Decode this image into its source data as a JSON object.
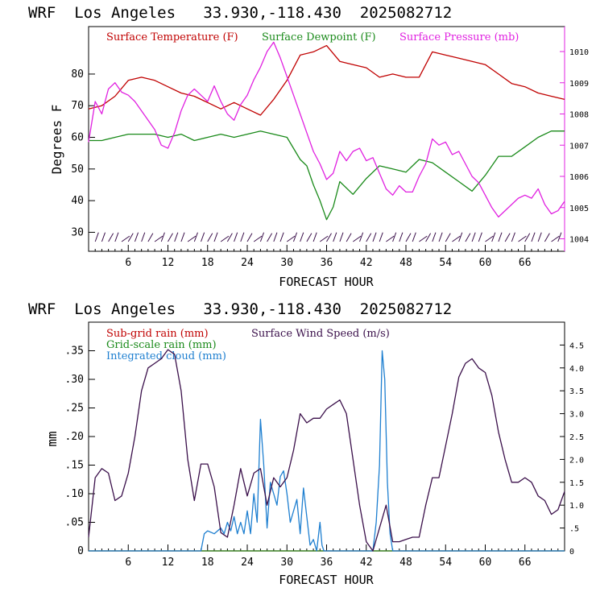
{
  "chart_data": [
    {
      "type": "line",
      "title": "WRF  Los Angeles   33.930,-118.430  2025082712",
      "xlabel": "FORECAST HOUR",
      "ylabel": "Degrees F",
      "xlim": [
        0,
        72
      ],
      "ylim": [
        24,
        95
      ],
      "y2lim": [
        1003.6,
        1010.8
      ],
      "xticks": [
        "6",
        "12",
        "18",
        "24",
        "30",
        "36",
        "42",
        "48",
        "54",
        "60",
        "66"
      ],
      "yticks": [
        "30",
        "40",
        "50",
        "60",
        "70",
        "80"
      ],
      "y2ticks": [
        "1004",
        "1005",
        "1006",
        "1007",
        "1008",
        "1009",
        "1010"
      ],
      "legend_position": "top",
      "series": [
        {
          "name": "Surface Temperature (F)",
          "color": "#c00000",
          "axis": "left",
          "x": [
            0,
            2,
            4,
            6,
            8,
            10,
            12,
            14,
            16,
            18,
            20,
            22,
            24,
            26,
            28,
            30,
            32,
            34,
            36,
            38,
            40,
            42,
            44,
            46,
            48,
            50,
            52,
            54,
            56,
            58,
            60,
            62,
            64,
            66,
            68,
            70,
            72
          ],
          "y": [
            69,
            70,
            73,
            78,
            79,
            78,
            76,
            74,
            73,
            71,
            69,
            71,
            69,
            67,
            72,
            78,
            86,
            87,
            89,
            84,
            83,
            82,
            79,
            80,
            79,
            79,
            87,
            86,
            85,
            84,
            83,
            80,
            77,
            76,
            74,
            73,
            72
          ]
        },
        {
          "name": "Surface Dewpoint (F)",
          "color": "#1a8a1a",
          "axis": "left",
          "x": [
            0,
            2,
            4,
            6,
            8,
            10,
            12,
            14,
            16,
            18,
            20,
            22,
            24,
            26,
            28,
            30,
            32,
            33,
            34,
            35,
            36,
            37,
            38,
            40,
            42,
            44,
            46,
            48,
            50,
            52,
            54,
            56,
            58,
            60,
            62,
            64,
            66,
            68,
            70,
            72
          ],
          "y": [
            59,
            59,
            60,
            61,
            61,
            61,
            60,
            61,
            59,
            60,
            61,
            60,
            61,
            62,
            61,
            60,
            53,
            51,
            45,
            40,
            34,
            38,
            46,
            42,
            47,
            51,
            50,
            49,
            53,
            52,
            49,
            46,
            43,
            48,
            54,
            54,
            57,
            60,
            62,
            62
          ]
        },
        {
          "name": "Surface Pressure (mb)",
          "color": "#e020e0",
          "axis": "right",
          "x": [
            0,
            1,
            2,
            3,
            4,
            5,
            6,
            7,
            8,
            9,
            10,
            11,
            12,
            13,
            14,
            15,
            16,
            17,
            18,
            19,
            20,
            21,
            22,
            23,
            24,
            25,
            26,
            27,
            28,
            29,
            30,
            31,
            32,
            33,
            34,
            35,
            36,
            37,
            38,
            39,
            40,
            41,
            42,
            43,
            44,
            45,
            46,
            47,
            48,
            49,
            50,
            51,
            52,
            53,
            54,
            55,
            56,
            57,
            58,
            59,
            60,
            61,
            62,
            63,
            64,
            65,
            66,
            67,
            68,
            69,
            70,
            71,
            72
          ],
          "y": [
            1007.1,
            1008.4,
            1008.0,
            1008.8,
            1009.0,
            1008.7,
            1008.6,
            1008.4,
            1008.1,
            1007.8,
            1007.5,
            1007.0,
            1006.9,
            1007.4,
            1008.1,
            1008.6,
            1008.8,
            1008.6,
            1008.4,
            1008.9,
            1008.4,
            1008.0,
            1007.8,
            1008.3,
            1008.6,
            1009.1,
            1009.5,
            1010.0,
            1010.3,
            1009.8,
            1009.2,
            1008.6,
            1008.0,
            1007.4,
            1006.8,
            1006.4,
            1005.9,
            1006.1,
            1006.8,
            1006.5,
            1006.8,
            1006.9,
            1006.5,
            1006.6,
            1006.1,
            1005.6,
            1005.4,
            1005.7,
            1005.5,
            1005.5,
            1006.0,
            1006.4,
            1007.2,
            1007.0,
            1007.1,
            1006.7,
            1006.8,
            1006.4,
            1006.0,
            1005.8,
            1005.4,
            1005.0,
            1004.7,
            1004.9,
            1005.1,
            1005.3,
            1005.4,
            1005.3,
            1005.6,
            1005.1,
            1004.8,
            1004.9,
            1005.2
          ]
        }
      ]
    },
    {
      "type": "line",
      "title": "WRF  Los Angeles   33.930,-118.430  2025082712",
      "xlabel": "FORECAST HOUR",
      "ylabel": "mm",
      "xlim": [
        0,
        72
      ],
      "ylim": [
        0,
        0.4
      ],
      "y2lim": [
        0,
        5.0
      ],
      "xticks": [
        "6",
        "12",
        "18",
        "24",
        "30",
        "36",
        "42",
        "48",
        "54",
        "60",
        "66"
      ],
      "yticks": [
        "0",
        ".05",
        ".10",
        ".15",
        ".20",
        ".25",
        ".30",
        ".35"
      ],
      "y2ticks": [
        "0",
        ".5",
        "1.0",
        "1.5",
        "2.0",
        "2.5",
        "3.0",
        "3.5",
        "4.0",
        "4.5"
      ],
      "legend_position": "top-left",
      "series": [
        {
          "name": "Sub-grid rain (mm)",
          "color": "#c00000",
          "axis": "left",
          "x": [
            0,
            72
          ],
          "y": [
            0,
            0
          ]
        },
        {
          "name": "Grid-scale rain (mm)",
          "color": "#1a8a1a",
          "axis": "left",
          "x": [
            0,
            72
          ],
          "y": [
            0,
            0
          ]
        },
        {
          "name": "Integrated cloud (mm)",
          "color": "#1e7fd0",
          "axis": "left",
          "x": [
            0,
            17,
            17.5,
            18,
            19,
            20,
            20.5,
            21,
            21.5,
            22,
            22.5,
            23,
            23.5,
            24,
            24.5,
            25,
            25.5,
            26,
            26.5,
            27,
            27.5,
            28,
            28.5,
            29,
            29.5,
            30,
            30.5,
            31,
            31.5,
            32,
            32.5,
            33,
            33.5,
            34,
            34.5,
            35,
            35.3,
            35.6,
            36,
            43,
            43.5,
            44,
            44.4,
            44.8,
            45.2,
            45.6,
            46,
            72
          ],
          "y": [
            0,
            0,
            0.03,
            0.035,
            0.03,
            0.04,
            0.03,
            0.05,
            0.035,
            0.06,
            0.03,
            0.05,
            0.03,
            0.07,
            0.03,
            0.1,
            0.05,
            0.23,
            0.15,
            0.04,
            0.12,
            0.1,
            0.08,
            0.13,
            0.14,
            0.1,
            0.05,
            0.07,
            0.09,
            0.03,
            0.11,
            0.06,
            0.01,
            0.02,
            0.0,
            0.05,
            0.01,
            0.0,
            0.0,
            0.0,
            0.05,
            0.15,
            0.35,
            0.3,
            0.12,
            0.03,
            0.0,
            0.0
          ]
        },
        {
          "name": "Surface Wind Speed (m/s)",
          "color": "#3a0f4a",
          "axis": "right",
          "x": [
            0,
            1,
            2,
            3,
            4,
            5,
            6,
            7,
            8,
            9,
            10,
            11,
            12,
            13,
            14,
            15,
            16,
            17,
            18,
            19,
            20,
            21,
            22,
            23,
            24,
            25,
            26,
            27,
            28,
            29,
            30,
            31,
            32,
            33,
            34,
            35,
            36,
            37,
            38,
            39,
            40,
            41,
            42,
            43,
            44,
            45,
            46,
            47,
            48,
            49,
            50,
            51,
            52,
            53,
            54,
            55,
            56,
            57,
            58,
            59,
            60,
            61,
            62,
            63,
            64,
            65,
            66,
            67,
            68,
            69,
            70,
            71,
            72
          ],
          "y": [
            0.3,
            1.6,
            1.8,
            1.7,
            1.1,
            1.2,
            1.7,
            2.5,
            3.5,
            4.0,
            4.1,
            4.2,
            4.4,
            4.3,
            3.5,
            2.0,
            1.1,
            1.9,
            1.9,
            1.4,
            0.4,
            0.3,
            1.0,
            1.8,
            1.2,
            1.7,
            1.8,
            1.0,
            1.6,
            1.4,
            1.6,
            2.2,
            3.0,
            2.8,
            2.9,
            2.9,
            3.1,
            3.2,
            3.3,
            3.0,
            2.0,
            1.0,
            0.2,
            0.0,
            0.5,
            1.0,
            0.2,
            0.2,
            0.25,
            0.3,
            0.3,
            1.0,
            1.6,
            1.6,
            2.3,
            3.0,
            3.8,
            4.1,
            4.2,
            4.0,
            3.9,
            3.4,
            2.6,
            2.0,
            1.5,
            1.5,
            1.6,
            1.5,
            1.2,
            1.1,
            0.8,
            0.9,
            1.3
          ]
        }
      ]
    }
  ]
}
